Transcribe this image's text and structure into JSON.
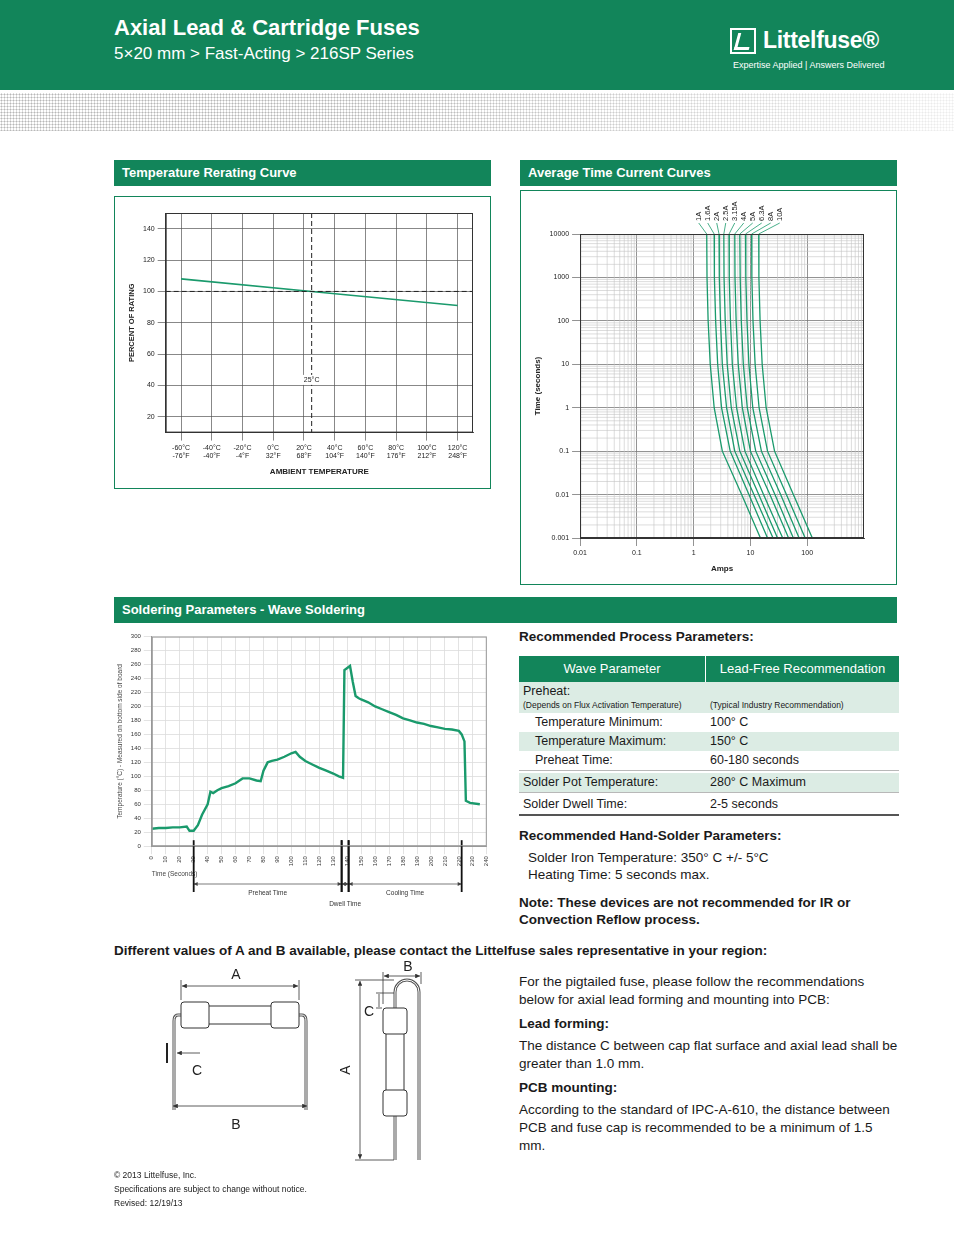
{
  "header": {
    "title": "Axial Lead & Cartridge Fuses",
    "subtitle": "5×20 mm > Fast-Acting > 216SP Series",
    "logo": "Littelfuse®",
    "tagline": "Expertise Applied | Answers Delivered"
  },
  "chart_data": [
    {
      "type": "line",
      "title": "Temperature Rerating Curve",
      "x_label": "AMBIENT TEMPERATURE",
      "y_label": "PERCENT OF RATING",
      "series": [
        {
          "color": "#1a9a6c",
          "x": [
            -60,
            25,
            120
          ],
          "y": [
            108,
            100,
            91
          ]
        }
      ],
      "xlim": [
        -70,
        130
      ],
      "xticks": [
        {
          "value": -60,
          "label": [
            "-60°C",
            "-76°F"
          ]
        },
        {
          "value": -40,
          "label": [
            "-40°C",
            "-40°F"
          ]
        },
        {
          "value": -20,
          "label": [
            "-20°C",
            "-4°F"
          ]
        },
        {
          "value": 0,
          "label": [
            "0°C",
            "32°F"
          ]
        },
        {
          "value": 20,
          "label": [
            "20°C",
            "68°F"
          ]
        },
        {
          "value": 40,
          "label": [
            "40°C",
            "104°F"
          ]
        },
        {
          "value": 60,
          "label": [
            "60°C",
            "140°F"
          ]
        },
        {
          "value": 80,
          "label": [
            "80°C",
            "176°F"
          ]
        },
        {
          "value": 100,
          "label": [
            "100°C",
            "212°F"
          ]
        },
        {
          "value": 120,
          "label": [
            "120°C",
            "248°F"
          ]
        }
      ],
      "ylim": [
        10,
        150
      ],
      "yticks": [
        20,
        40,
        60,
        80,
        100,
        120,
        140
      ],
      "grid": true,
      "reference_lines": [
        {
          "axis": "y",
          "value": 100,
          "line_style": "dashed"
        },
        {
          "axis": "x",
          "value": 25,
          "label": "25°C",
          "line_style": "dashed"
        }
      ]
    },
    {
      "type": "line",
      "title": "Average Time Current Curves",
      "log": true,
      "x_label": "Amps",
      "y_label": "Time (seconds)",
      "xlim": [
        0.01,
        1000
      ],
      "xticks": [
        0.01,
        0.1,
        1,
        10,
        100
      ],
      "ylim": [
        0.001,
        10000
      ],
      "yticks": [
        0.001,
        0.01,
        0.1,
        1,
        10,
        100,
        1000,
        10000
      ],
      "grid": true,
      "series": [
        {
          "name": "1A",
          "color": "#1a9a6c",
          "x": [
            1.7,
            1.72,
            1.8,
            1.96,
            2.3,
            3.2,
            7.0,
            15
          ],
          "y": [
            10000,
            1000,
            100,
            10,
            1,
            0.1,
            0.01,
            0.001
          ]
        },
        {
          "name": "1.6A",
          "color": "#1a9a6c",
          "x": [
            2.3,
            2.32,
            2.44,
            2.65,
            3.1,
            4.4,
            9.4,
            20
          ],
          "y": [
            10000,
            1000,
            100,
            10,
            1,
            0.1,
            0.01,
            0.001
          ]
        },
        {
          "name": "2A",
          "color": "#1a9a6c",
          "x": [
            2.8,
            2.83,
            2.97,
            3.2,
            3.8,
            5.3,
            11.5,
            25
          ],
          "y": [
            10000,
            1000,
            100,
            10,
            1,
            0.1,
            0.01,
            0.001
          ]
        },
        {
          "name": "2.5A",
          "color": "#1a9a6c",
          "x": [
            3.4,
            3.43,
            3.6,
            3.9,
            4.6,
            6.5,
            14,
            30
          ],
          "y": [
            10000,
            1000,
            100,
            10,
            1,
            0.1,
            0.01,
            0.001
          ]
        },
        {
          "name": "3.15A",
          "color": "#1a9a6c",
          "x": [
            4.2,
            4.24,
            4.45,
            4.8,
            5.7,
            8.0,
            17,
            37
          ],
          "y": [
            10000,
            1000,
            100,
            10,
            1,
            0.1,
            0.01,
            0.001
          ]
        },
        {
          "name": "4A",
          "color": "#1a9a6c",
          "x": [
            5.3,
            5.35,
            5.6,
            6.1,
            7.2,
            10,
            22,
            47
          ],
          "y": [
            10000,
            1000,
            100,
            10,
            1,
            0.1,
            0.01,
            0.001
          ]
        },
        {
          "name": "5A",
          "color": "#1a9a6c",
          "x": [
            6.5,
            6.6,
            6.9,
            7.5,
            8.8,
            12.4,
            27,
            57
          ],
          "y": [
            10000,
            1000,
            100,
            10,
            1,
            0.1,
            0.01,
            0.001
          ]
        },
        {
          "name": "6.3A",
          "color": "#1a9a6c",
          "x": [
            8.2,
            8.3,
            8.7,
            9.4,
            11,
            15.6,
            34,
            72
          ],
          "y": [
            10000,
            1000,
            100,
            10,
            1,
            0.1,
            0.01,
            0.001
          ]
        },
        {
          "name": "8A",
          "color": "#1a9a6c",
          "x": [
            10.5,
            10.6,
            11.1,
            12.1,
            14.2,
            20,
            43,
            92
          ],
          "y": [
            10000,
            1000,
            100,
            10,
            1,
            0.1,
            0.01,
            0.001
          ]
        },
        {
          "name": "10A",
          "color": "#1a9a6c",
          "x": [
            14,
            14.1,
            14.8,
            16.1,
            18.9,
            26.6,
            57,
            123
          ],
          "y": [
            10000,
            1000,
            100,
            10,
            1,
            0.1,
            0.01,
            0.001
          ]
        }
      ]
    },
    {
      "type": "line",
      "title": "Soldering Parameters - Wave Soldering",
      "x_label": "Time (Seconds)",
      "y_label": "Temperature (°C) - Measured on bottom side of board",
      "xlim": [
        0,
        240
      ],
      "xticks": [
        0,
        10,
        20,
        30,
        40,
        50,
        60,
        70,
        80,
        90,
        100,
        110,
        120,
        130,
        140,
        150,
        160,
        170,
        180,
        190,
        200,
        210,
        220,
        230,
        240
      ],
      "ylim": [
        0,
        300
      ],
      "yticks": [
        0,
        20,
        40,
        60,
        80,
        100,
        120,
        140,
        160,
        180,
        200,
        220,
        240,
        260,
        280,
        300
      ],
      "grid": true,
      "series": [
        {
          "color": "#1a9a6c",
          "x": [
            0,
            5,
            10,
            15,
            20,
            25,
            27,
            30,
            33,
            36,
            40,
            42,
            44,
            47,
            50,
            55,
            60,
            65,
            70,
            75,
            78,
            80,
            83,
            86,
            90,
            95,
            100,
            103,
            106,
            110,
            115,
            120,
            125,
            130,
            134,
            137,
            138,
            140,
            142,
            144,
            146,
            148,
            150,
            155,
            160,
            165,
            170,
            175,
            180,
            185,
            190,
            195,
            200,
            205,
            210,
            215,
            220,
            222,
            224,
            225,
            228,
            235
          ],
          "y": [
            25,
            26,
            26,
            27,
            27,
            28,
            22,
            22,
            30,
            45,
            60,
            78,
            76,
            80,
            83,
            86,
            90,
            97,
            97,
            94,
            93,
            108,
            120,
            122,
            124,
            128,
            133,
            135,
            128,
            122,
            117,
            112,
            108,
            104,
            100,
            98,
            252,
            255,
            258,
            235,
            215,
            212,
            210,
            206,
            200,
            196,
            192,
            188,
            183,
            180,
            177,
            175,
            172,
            170,
            168,
            167,
            165,
            160,
            150,
            65,
            62,
            60
          ]
        }
      ],
      "spans": [
        {
          "label": "Preheat Time",
          "start": 30,
          "end": 136
        },
        {
          "label": "Dwell Time",
          "start": 136,
          "end": 141
        },
        {
          "label": "Cooling Time",
          "start": 141,
          "end": 222
        }
      ]
    }
  ],
  "process_parameters": {
    "title": "Recommended Process Parameters:",
    "columns": [
      "Wave Parameter",
      "Lead-Free Recommendation"
    ],
    "rows": [
      {
        "label": "Preheat:",
        "label_note": "(Depends on Flux Activation Temperature)",
        "value_note": "(Typical Industry Recommendation)",
        "rows": [
          {
            "label": "Temperature Minimum:",
            "value": "100° C"
          },
          {
            "label": "Temperature Maximum:",
            "value": "150° C"
          },
          {
            "label": "Preheat Time:",
            "value": "60-180 seconds"
          }
        ]
      },
      {
        "label": "Solder Pot Temperature:",
        "value": "280° C Maximum"
      },
      {
        "label": "Solder Dwell Time:",
        "value": "2-5 seconds"
      }
    ]
  },
  "hand_solder": {
    "title": "Recommended Hand-Solder Parameters:",
    "lines": [
      "Solder Iron Temperature: 350° C +/- 5°C",
      "Heating Time: 5 seconds max."
    ]
  },
  "note": "Note: These devices are not recommended for IR or Convection Reflow process.",
  "dimensions": {
    "title": "Different values of A and B available, please contact the Littelfuse sales representative in your region:",
    "labels": [
      "A",
      "B",
      "C"
    ]
  },
  "pigtail": {
    "intro": "For the pigtailed fuse, please follow the recommendations below for axial lead forming and mounting into PCB:",
    "sections": [
      {
        "heading": "Lead forming:",
        "text": "The distance C between cap flat surface and axial lead shall be greater than 1.0 mm."
      },
      {
        "heading": "PCB mounting:",
        "text": "According to the standard of IPC-A-610, the distance between PCB and fuse cap is recommended to be a minimum of 1.5 mm."
      }
    ]
  },
  "footer": [
    "© 2013 Littelfuse, Inc.",
    "Specifications are subject to change without notice.",
    "Revised: 12/19/13"
  ]
}
